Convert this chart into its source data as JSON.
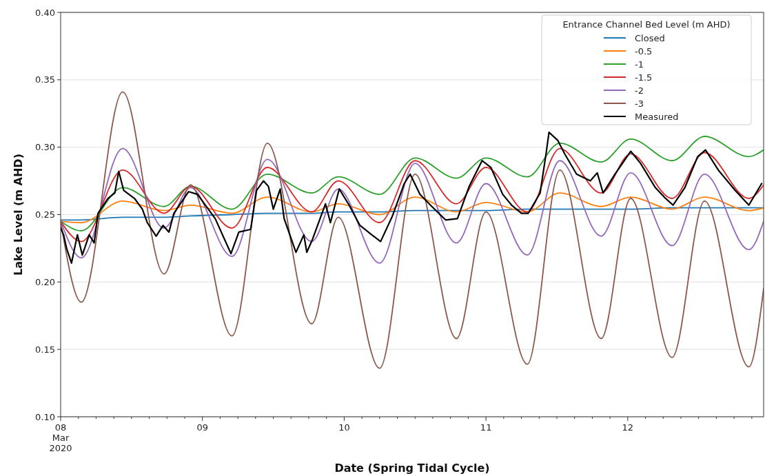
{
  "chart_data": {
    "type": "line",
    "xlabel": "Date (Spring Tidal Cycle)",
    "ylabel": "Lake Level (m AHD)",
    "legend_title": "Entrance Channel Bed Level (m AHD)",
    "legend": "top right",
    "grid": "y",
    "line_style": "solid",
    "marker": "none",
    "xlim": [
      "2020-03-08T00:00",
      "2020-03-12T23:00"
    ],
    "xticks": [
      {
        "value": "2020-03-08",
        "label": "08\nMar\n2020"
      },
      {
        "value": "2020-03-09",
        "label": "09"
      },
      {
        "value": "2020-03-10",
        "label": "10"
      },
      {
        "value": "2020-03-11",
        "label": "11"
      },
      {
        "value": "2020-03-12",
        "label": "12"
      },
      {
        "value": "2020-03-08T03:00",
        "label": null
      },
      {
        "value": "2020-03-08T06:00",
        "label": null
      },
      {
        "value": "2020-03-08T09:00",
        "label": null
      },
      {
        "value": "2020-03-08T12:00",
        "label": null
      },
      {
        "value": "2020-03-08T15:00",
        "label": null
      },
      {
        "value": "2020-03-08T18:00",
        "label": null
      },
      {
        "value": "2020-03-08T21:00",
        "label": null
      },
      {
        "value": "2020-03-09T03:00",
        "label": null
      },
      {
        "value": "2020-03-09T06:00",
        "label": null
      },
      {
        "value": "2020-03-09T09:00",
        "label": null
      },
      {
        "value": "2020-03-09T12:00",
        "label": null
      },
      {
        "value": "2020-03-09T15:00",
        "label": null
      },
      {
        "value": "2020-03-09T18:00",
        "label": null
      },
      {
        "value": "2020-03-09T21:00",
        "label": null
      },
      {
        "value": "2020-03-10T03:00",
        "label": null
      },
      {
        "value": "2020-03-10T06:00",
        "label": null
      },
      {
        "value": "2020-03-10T09:00",
        "label": null
      },
      {
        "value": "2020-03-10T12:00",
        "label": null
      },
      {
        "value": "2020-03-10T15:00",
        "label": null
      },
      {
        "value": "2020-03-10T18:00",
        "label": null
      },
      {
        "value": "2020-03-10T21:00",
        "label": null
      },
      {
        "value": "2020-03-11T03:00",
        "label": null
      },
      {
        "value": "2020-03-11T06:00",
        "label": null
      },
      {
        "value": "2020-03-11T09:00",
        "label": null
      },
      {
        "value": "2020-03-11T12:00",
        "label": null
      },
      {
        "value": "2020-03-11T15:00",
        "label": null
      },
      {
        "value": "2020-03-11T18:00",
        "label": null
      },
      {
        "value": "2020-03-11T21:00",
        "label": null
      },
      {
        "value": "2020-03-12T03:00",
        "label": null
      },
      {
        "value": "2020-03-12T06:00",
        "label": null
      },
      {
        "value": "2020-03-12T09:00",
        "label": null
      },
      {
        "value": "2020-03-12T12:00",
        "label": null
      },
      {
        "value": "2020-03-12T15:00",
        "label": null
      },
      {
        "value": "2020-03-12T18:00",
        "label": null
      },
      {
        "value": "2020-03-12T21:00",
        "label": null
      }
    ],
    "ylim": [
      0.1,
      0.4
    ],
    "yticks": [
      {
        "value": 0.1,
        "label": "0.10"
      },
      0.15,
      {
        "value": 0.2,
        "label": "0.20"
      },
      0.25,
      {
        "value": 0.3,
        "label": "0.30"
      },
      0.35,
      {
        "value": 0.4,
        "label": "0.40"
      }
    ],
    "x": [
      "2020-03-08T00:00",
      "2020-03-08T03:30",
      "2020-03-08T10:30",
      "2020-03-08T17:30",
      "2020-03-08T22:00",
      "2020-03-09T05:00",
      "2020-03-09T11:00",
      "2020-03-09T18:30",
      "2020-03-09T23:00",
      "2020-03-10T06:00",
      "2020-03-10T12:00",
      "2020-03-10T19:00",
      "2020-03-11T00:00",
      "2020-03-11T07:00",
      "2020-03-11T12:30",
      "2020-03-11T19:30",
      "2020-03-12T00:30",
      "2020-03-12T07:30",
      "2020-03-12T13:00",
      "2020-03-12T20:30",
      "2020-03-12T23:00"
    ],
    "series": [
      {
        "name": "Closed",
        "color": "#1f77b4",
        "values": [
          0.246,
          0.246,
          0.248,
          0.248,
          0.249,
          0.25,
          0.251,
          0.251,
          0.252,
          0.252,
          0.253,
          0.253,
          0.253,
          0.254,
          0.254,
          0.254,
          0.254,
          0.255,
          0.255,
          0.255,
          0.255
        ]
      },
      {
        "name": "-0.5",
        "color": "#ff7f0e",
        "values": [
          0.245,
          0.244,
          0.26,
          0.253,
          0.257,
          0.251,
          0.263,
          0.252,
          0.258,
          0.25,
          0.263,
          0.252,
          0.259,
          0.252,
          0.266,
          0.256,
          0.263,
          0.254,
          0.263,
          0.253,
          0.255
        ]
      },
      {
        "name": "-1",
        "color": "#2ca02c",
        "values": [
          0.245,
          0.238,
          0.27,
          0.256,
          0.271,
          0.254,
          0.28,
          0.266,
          0.278,
          0.265,
          0.292,
          0.277,
          0.292,
          0.278,
          0.303,
          0.289,
          0.306,
          0.29,
          0.308,
          0.293,
          0.298
        ]
      },
      {
        "name": "-1.5",
        "color": "#d62728",
        "values": [
          0.245,
          0.23,
          0.283,
          0.251,
          0.271,
          0.24,
          0.285,
          0.252,
          0.275,
          0.244,
          0.29,
          0.258,
          0.285,
          0.252,
          0.299,
          0.266,
          0.295,
          0.262,
          0.296,
          0.262,
          0.272
        ]
      },
      {
        "name": "-2",
        "color": "#9467bd",
        "values": [
          0.245,
          0.218,
          0.299,
          0.24,
          0.27,
          0.219,
          0.291,
          0.23,
          0.269,
          0.214,
          0.288,
          0.229,
          0.273,
          0.22,
          0.29,
          0.234,
          0.281,
          0.227,
          0.28,
          0.224,
          0.245
        ]
      },
      {
        "name": "-3",
        "color": "#8c564b",
        "values": [
          0.245,
          0.185,
          0.341,
          0.206,
          0.272,
          0.16,
          0.303,
          0.169,
          0.248,
          0.136,
          0.28,
          0.158,
          0.252,
          0.139,
          0.283,
          0.158,
          0.262,
          0.144,
          0.26,
          0.137,
          0.195
        ]
      },
      {
        "name": "Measured",
        "color": "#000000",
        "x": [
          "2020-03-08T00:00",
          "2020-03-08T00:30",
          "2020-03-08T01:00",
          "2020-03-08T01:50",
          "2020-03-08T02:50",
          "2020-03-08T03:40",
          "2020-03-08T04:50",
          "2020-03-08T05:40",
          "2020-03-08T06:20",
          "2020-03-08T08:00",
          "2020-03-08T09:10",
          "2020-03-08T09:50",
          "2020-03-08T10:40",
          "2020-03-08T12:30",
          "2020-03-08T13:50",
          "2020-03-08T14:40",
          "2020-03-08T16:10",
          "2020-03-08T17:20",
          "2020-03-08T18:20",
          "2020-03-08T19:10",
          "2020-03-08T21:40",
          "2020-03-08T23:10",
          "2020-03-09T02:10",
          "2020-03-09T04:50",
          "2020-03-09T06:10",
          "2020-03-09T08:10",
          "2020-03-09T09:10",
          "2020-03-09T10:20",
          "2020-03-09T11:10",
          "2020-03-09T12:00",
          "2020-03-09T13:10",
          "2020-03-09T13:50",
          "2020-03-09T15:50",
          "2020-03-09T17:10",
          "2020-03-09T17:40",
          "2020-03-09T18:40",
          "2020-03-09T20:50",
          "2020-03-09T21:40",
          "2020-03-09T23:10",
          "2020-03-10T00:50",
          "2020-03-10T02:40",
          "2020-03-10T04:40",
          "2020-03-10T06:10",
          "2020-03-10T08:10",
          "2020-03-10T10:10",
          "2020-03-10T11:10",
          "2020-03-10T12:50",
          "2020-03-10T14:50",
          "2020-03-10T17:10",
          "2020-03-10T19:10",
          "2020-03-10T21:10",
          "2020-03-10T23:20",
          "2020-03-11T00:50",
          "2020-03-11T02:50",
          "2020-03-11T04:20",
          "2020-03-11T06:00",
          "2020-03-11T07:10",
          "2020-03-11T09:10",
          "2020-03-11T10:10",
          "2020-03-11T10:40",
          "2020-03-11T12:10",
          "2020-03-11T13:20",
          "2020-03-11T15:20",
          "2020-03-11T17:40",
          "2020-03-11T18:50",
          "2020-03-11T19:50",
          "2020-03-11T21:50",
          "2020-03-12T00:30",
          "2020-03-12T02:10",
          "2020-03-12T04:40",
          "2020-03-12T06:10",
          "2020-03-12T07:40",
          "2020-03-12T09:40",
          "2020-03-12T11:50",
          "2020-03-12T13:10",
          "2020-03-12T15:20",
          "2020-03-12T18:10",
          "2020-03-12T20:30",
          "2020-03-12T22:40"
        ],
        "values": [
          0.24,
          0.235,
          0.225,
          0.214,
          0.235,
          0.22,
          0.235,
          0.229,
          0.251,
          0.262,
          0.266,
          0.282,
          0.268,
          0.262,
          0.254,
          0.244,
          0.234,
          0.242,
          0.237,
          0.251,
          0.267,
          0.265,
          0.247,
          0.221,
          0.237,
          0.239,
          0.268,
          0.275,
          0.271,
          0.254,
          0.269,
          0.247,
          0.222,
          0.235,
          0.222,
          0.232,
          0.258,
          0.244,
          0.269,
          0.257,
          0.242,
          0.235,
          0.23,
          0.249,
          0.273,
          0.28,
          0.265,
          0.256,
          0.246,
          0.247,
          0.271,
          0.29,
          0.285,
          0.265,
          0.257,
          0.251,
          0.251,
          0.266,
          0.295,
          0.311,
          0.305,
          0.295,
          0.28,
          0.275,
          0.281,
          0.266,
          0.28,
          0.297,
          0.288,
          0.27,
          0.263,
          0.257,
          0.27,
          0.293,
          0.298,
          0.283,
          0.268,
          0.257,
          0.273
        ]
      }
    ]
  }
}
